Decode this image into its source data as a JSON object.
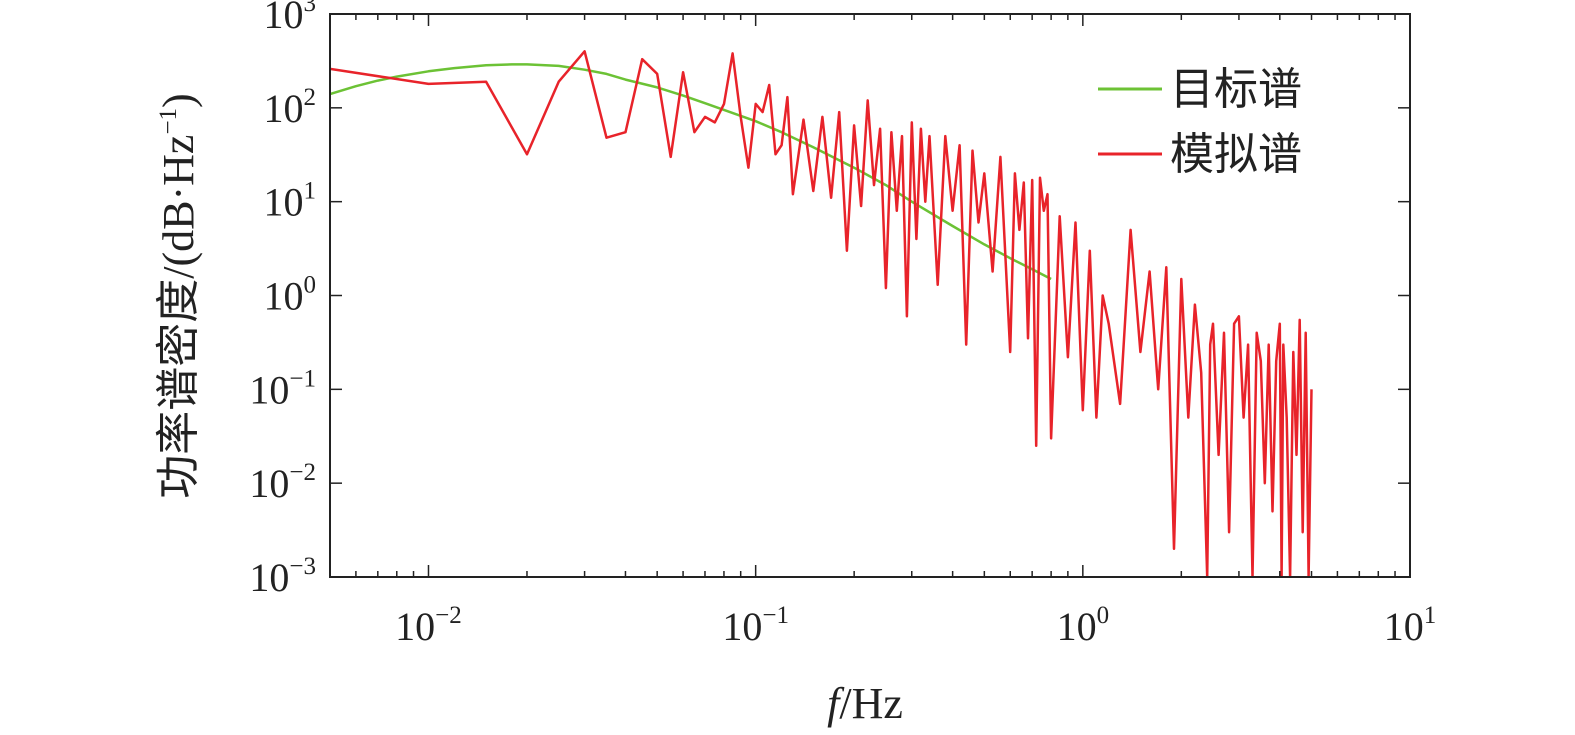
{
  "chart_data": {
    "type": "line",
    "xscale": "log",
    "yscale": "log",
    "xlim": [
      0.005,
      10
    ],
    "ylim": [
      0.001,
      1000
    ],
    "xticks": [
      {
        "value": 0.01,
        "base": "10",
        "exp": "−2"
      },
      {
        "value": 0.1,
        "base": "10",
        "exp": "−1"
      },
      {
        "value": 1,
        "base": "10",
        "exp": "0"
      },
      {
        "value": 10,
        "base": "10",
        "exp": "1"
      }
    ],
    "yticks": [
      {
        "value": 1000,
        "base": "10",
        "exp": "3"
      },
      {
        "value": 100,
        "base": "10",
        "exp": "2"
      },
      {
        "value": 10,
        "base": "10",
        "exp": "1"
      },
      {
        "value": 1,
        "base": "10",
        "exp": "0"
      },
      {
        "value": 0.1,
        "base": "10",
        "exp": "−1"
      },
      {
        "value": 0.01,
        "base": "10",
        "exp": "−2"
      },
      {
        "value": 0.001,
        "base": "10",
        "exp": "−3"
      }
    ],
    "xlabel": {
      "italic": "f",
      "rest": "/Hz"
    },
    "ylabel": {
      "main": "功率谱密度/(dB·Hz",
      "sup": "−1",
      "close": ")"
    },
    "legend_position": "top-right",
    "grid": false,
    "series": [
      {
        "name": "目标谱",
        "color": "#6cc235",
        "x": [
          0.005,
          0.006,
          0.007,
          0.008,
          0.01,
          0.012,
          0.015,
          0.018,
          0.02,
          0.025,
          0.03,
          0.035,
          0.04,
          0.05,
          0.06,
          0.07,
          0.08,
          0.1,
          0.12,
          0.15,
          0.2,
          0.25,
          0.3,
          0.4,
          0.5,
          0.6,
          0.7,
          0.8
        ],
        "y": [
          140,
          170,
          195,
          215,
          245,
          265,
          285,
          290,
          290,
          280,
          255,
          230,
          200,
          165,
          135,
          112,
          95,
          72,
          55,
          38,
          23,
          15,
          10,
          5.5,
          3.5,
          2.5,
          1.9,
          1.5
        ]
      },
      {
        "name": "模拟谱",
        "color": "#e8232a",
        "x": [
          0.005,
          0.01,
          0.015,
          0.02,
          0.025,
          0.03,
          0.035,
          0.04,
          0.045,
          0.05,
          0.055,
          0.06,
          0.065,
          0.07,
          0.075,
          0.08,
          0.085,
          0.09,
          0.095,
          0.1,
          0.105,
          0.11,
          0.115,
          0.12,
          0.125,
          0.13,
          0.14,
          0.15,
          0.16,
          0.17,
          0.18,
          0.19,
          0.2,
          0.21,
          0.22,
          0.23,
          0.24,
          0.25,
          0.26,
          0.27,
          0.28,
          0.29,
          0.3,
          0.31,
          0.32,
          0.33,
          0.34,
          0.36,
          0.38,
          0.4,
          0.42,
          0.44,
          0.46,
          0.48,
          0.5,
          0.53,
          0.56,
          0.6,
          0.62,
          0.64,
          0.66,
          0.68,
          0.7,
          0.72,
          0.74,
          0.76,
          0.78,
          0.8,
          0.85,
          0.9,
          0.95,
          1.0,
          1.05,
          1.1,
          1.15,
          1.2,
          1.3,
          1.4,
          1.5,
          1.6,
          1.7,
          1.8,
          1.9,
          2.0,
          2.1,
          2.2,
          2.3,
          2.4,
          2.45,
          2.5,
          2.6,
          2.7,
          2.8,
          2.9,
          3.0,
          3.1,
          3.2,
          3.3,
          3.4,
          3.5,
          3.6,
          3.7,
          3.8,
          3.9,
          4.0,
          4.05,
          4.1,
          4.2,
          4.3,
          4.4,
          4.5,
          4.6,
          4.7,
          4.8,
          4.9,
          5.0
        ],
        "y": [
          260,
          180,
          190,
          32,
          190,
          400,
          48,
          55,
          330,
          230,
          30,
          240,
          55,
          80,
          70,
          110,
          380,
          80,
          23,
          110,
          90,
          175,
          32,
          40,
          130,
          12,
          75,
          13,
          80,
          11,
          90,
          3,
          65,
          9,
          120,
          15,
          60,
          1.2,
          55,
          8,
          50,
          0.6,
          70,
          4,
          60,
          10,
          50,
          1.3,
          50,
          8,
          40,
          0.3,
          35,
          6,
          20,
          1.8,
          30,
          0.25,
          20,
          5,
          16,
          0.35,
          17,
          0.025,
          18,
          8,
          12,
          0.03,
          7,
          0.22,
          6,
          0.06,
          3,
          0.05,
          1.0,
          0.5,
          0.07,
          5,
          0.25,
          1.8,
          0.1,
          2,
          0.002,
          1.5,
          0.05,
          0.8,
          0.15,
          0.001,
          0.3,
          0.5,
          0.02,
          0.4,
          0.003,
          0.5,
          0.6,
          0.05,
          0.3,
          0.001,
          0.4,
          0.2,
          0.01,
          0.3,
          0.005,
          0.2,
          0.5,
          0.001,
          0.3,
          0.05,
          0.001,
          0.25,
          0.02,
          0.55,
          0.003,
          0.4,
          0.001,
          0.1
        ]
      }
    ]
  }
}
